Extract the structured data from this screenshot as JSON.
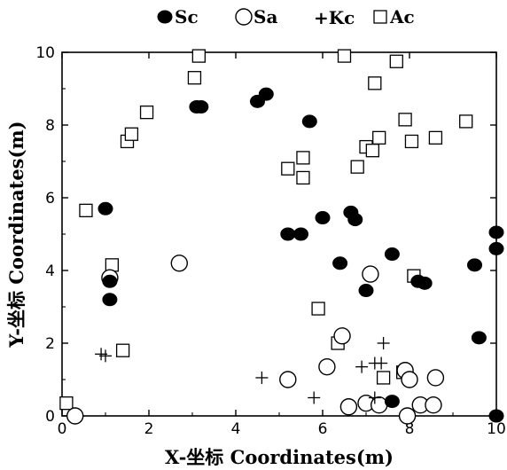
{
  "chart_data": {
    "type": "scatter",
    "title": "",
    "xlabel": "X-坐标 Coordinates(m)",
    "ylabel": "Y-坐标 Coordinates(m)",
    "xlim": [
      0,
      10
    ],
    "ylim": [
      0,
      10
    ],
    "x_ticks": [
      "0",
      "2",
      "4",
      "6",
      "8",
      "10"
    ],
    "y_ticks": [
      "0",
      "2",
      "4",
      "6",
      "8",
      "10"
    ],
    "grid": false,
    "legend_position": "top",
    "series": [
      {
        "name": "Sc",
        "marker": "filled-circle",
        "points": [
          [
            1.0,
            5.7
          ],
          [
            1.1,
            3.7
          ],
          [
            1.1,
            3.2
          ],
          [
            3.1,
            8.5
          ],
          [
            3.2,
            8.5
          ],
          [
            4.5,
            8.65
          ],
          [
            4.7,
            8.85
          ],
          [
            5.2,
            5.0
          ],
          [
            5.5,
            5.0
          ],
          [
            5.7,
            8.1
          ],
          [
            6.0,
            5.45
          ],
          [
            6.4,
            4.2
          ],
          [
            6.65,
            5.6
          ],
          [
            6.75,
            5.4
          ],
          [
            7.0,
            3.45
          ],
          [
            7.6,
            4.45
          ],
          [
            7.6,
            0.4
          ],
          [
            8.2,
            3.7
          ],
          [
            8.35,
            3.65
          ],
          [
            9.5,
            4.15
          ],
          [
            9.6,
            2.15
          ],
          [
            10.0,
            5.05
          ],
          [
            10.0,
            4.6
          ],
          [
            10.0,
            0.0
          ]
        ]
      },
      {
        "name": "Sa",
        "marker": "open-circle",
        "points": [
          [
            0.3,
            0.0
          ],
          [
            1.1,
            3.8
          ],
          [
            2.7,
            4.2
          ],
          [
            5.2,
            1.0
          ],
          [
            6.1,
            1.35
          ],
          [
            6.45,
            2.2
          ],
          [
            6.6,
            0.25
          ],
          [
            7.1,
            3.9
          ],
          [
            7.0,
            0.35
          ],
          [
            7.3,
            0.3
          ],
          [
            7.9,
            1.25
          ],
          [
            8.0,
            1.0
          ],
          [
            7.95,
            0.0
          ],
          [
            8.25,
            0.3
          ],
          [
            8.55,
            0.3
          ],
          [
            8.6,
            1.05
          ]
        ]
      },
      {
        "name": "Kc",
        "marker": "plus",
        "points": [
          [
            0.9,
            1.7
          ],
          [
            1.0,
            1.65
          ],
          [
            4.6,
            1.05
          ],
          [
            5.8,
            0.5
          ],
          [
            6.9,
            1.35
          ],
          [
            7.2,
            1.45
          ],
          [
            7.35,
            1.45
          ],
          [
            7.4,
            2.0
          ],
          [
            7.2,
            0.5
          ],
          [
            8.25,
            3.7
          ]
        ]
      },
      {
        "name": "Ac",
        "marker": "open-square",
        "points": [
          [
            0.1,
            0.35
          ],
          [
            0.55,
            5.65
          ],
          [
            1.15,
            4.15
          ],
          [
            1.4,
            1.8
          ],
          [
            1.5,
            7.55
          ],
          [
            1.6,
            7.75
          ],
          [
            1.95,
            8.35
          ],
          [
            3.05,
            9.3
          ],
          [
            3.15,
            9.9
          ],
          [
            5.2,
            6.8
          ],
          [
            5.55,
            7.1
          ],
          [
            5.55,
            6.55
          ],
          [
            5.9,
            2.95
          ],
          [
            6.35,
            2.0
          ],
          [
            6.5,
            9.9
          ],
          [
            6.8,
            6.85
          ],
          [
            7.0,
            7.4
          ],
          [
            7.15,
            7.3
          ],
          [
            7.2,
            9.15
          ],
          [
            7.3,
            7.65
          ],
          [
            7.4,
            1.05
          ],
          [
            7.7,
            9.75
          ],
          [
            7.9,
            8.15
          ],
          [
            8.05,
            7.55
          ],
          [
            8.1,
            3.85
          ],
          [
            7.85,
            1.2
          ],
          [
            8.6,
            7.65
          ],
          [
            9.3,
            8.1
          ]
        ]
      }
    ]
  }
}
